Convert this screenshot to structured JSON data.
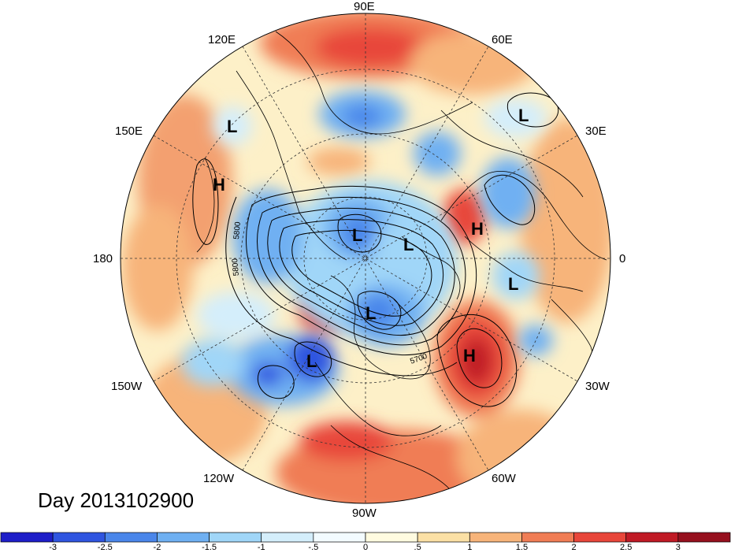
{
  "title": "Day 2013102900",
  "longitude_labels": {
    "lon_90e": "90E",
    "lon_120e": "120E",
    "lon_60e": "60E",
    "lon_150e": "150E",
    "lon_30e": "30E",
    "lon_180": "180",
    "lon_0": "0",
    "lon_150w": "150W",
    "lon_30w": "30W",
    "lon_120w": "120W",
    "lon_60w": "60W",
    "lon_90w": "90W"
  },
  "contour_labels": {
    "c5800a": "5800",
    "c5800b": "5800",
    "c5700": "5700"
  },
  "pressure_systems": [
    {
      "type": "L"
    },
    {
      "type": "L"
    },
    {
      "type": "H"
    },
    {
      "type": "L"
    },
    {
      "type": "L"
    },
    {
      "type": "H"
    },
    {
      "type": "L"
    },
    {
      "type": "L"
    },
    {
      "type": "L"
    },
    {
      "type": "H"
    }
  ],
  "colorbar": {
    "ticks": [
      "-3",
      "-2.5",
      "-2",
      "-1.5",
      "-1",
      "-.5",
      "0",
      ".5",
      "1",
      "1.5",
      "2",
      "2.5",
      "3"
    ],
    "colors": [
      "#1e1ec8",
      "#2f55e0",
      "#4a86ea",
      "#6fb0f2",
      "#a0d6f8",
      "#d4eefb",
      "#f3fbff",
      "#fffbe0",
      "#fbe0a5",
      "#f7b47a",
      "#f07d55",
      "#e8463a",
      "#c01a25",
      "#96101e"
    ]
  },
  "colors": {
    "ocean_neutral": "#fdf4d6",
    "cold": "#4a86ea",
    "warm": "#f07d55",
    "land_outline": "#000000"
  }
}
